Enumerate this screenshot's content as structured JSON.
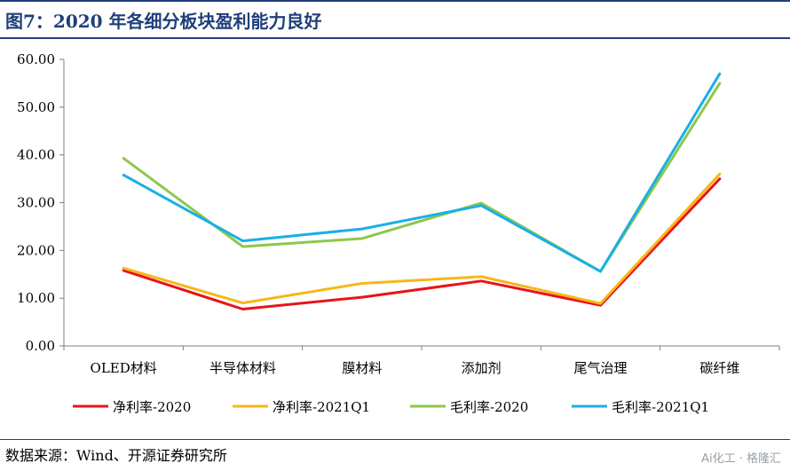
{
  "title": "图7：2020 年各细分板块盈利能力良好",
  "source": "数据来源：Wind、开源证券研究所",
  "watermark": "Ai化工 · 格隆汇",
  "chart_data": {
    "type": "line",
    "categories": [
      "OLED材料",
      "半导体材料",
      "膜材料",
      "添加剂",
      "尾气治理",
      "碳纤维"
    ],
    "ylim": [
      0,
      60
    ],
    "yticks": [
      "0.00",
      "10.00",
      "20.00",
      "30.00",
      "40.00",
      "50.00",
      "60.00"
    ],
    "grid": false,
    "legend_position": "bottom",
    "series": [
      {
        "name": "净利率-2020",
        "color": "#e8141b",
        "values": [
          15.8,
          7.7,
          10.2,
          13.6,
          8.5,
          35.0
        ]
      },
      {
        "name": "净利率-2021Q1",
        "color": "#f7b718",
        "values": [
          16.3,
          9.0,
          13.1,
          14.5,
          8.9,
          36.0
        ]
      },
      {
        "name": "毛利率-2020",
        "color": "#8cc84b",
        "values": [
          39.3,
          20.8,
          22.5,
          29.9,
          15.6,
          55.0
        ]
      },
      {
        "name": "毛利率-2021Q1",
        "color": "#1aafe6",
        "values": [
          35.8,
          22.0,
          24.5,
          29.4,
          15.6,
          57.0
        ]
      }
    ]
  }
}
